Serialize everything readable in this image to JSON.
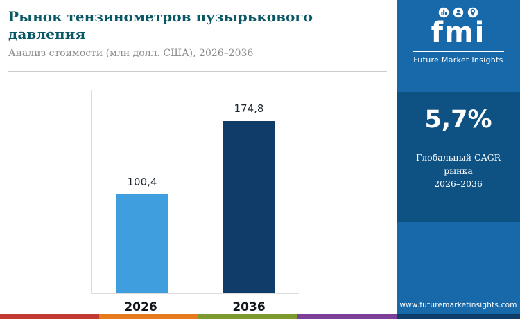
{
  "header": {
    "title": "Рынок тензинометров пузырькового давления",
    "subtitle": "Анализ стоимости (млн долл. США), 2026–2036"
  },
  "chart_data": {
    "type": "bar",
    "categories": [
      "2026",
      "2036"
    ],
    "values": [
      100.4,
      174.8
    ],
    "value_labels": [
      "100,4",
      "174,8"
    ],
    "title": "Рынок тензинометров пузырькового давления",
    "xlabel": "",
    "ylabel": "млн долл. США",
    "ylim": [
      0,
      190
    ],
    "grid": false,
    "legend": false,
    "bar_colors": [
      "#3f9ede",
      "#0f3c69"
    ]
  },
  "sidebar": {
    "logo_text": "fmi",
    "logo_caption": "Future Market Insights",
    "logo_icons": [
      "bar-chart-bubble-icon",
      "person-bubble-icon",
      "location-pin-bubble-icon"
    ],
    "cagr_value": "5,7%",
    "cagr_label_line1": "Глобальный CAGR рынка",
    "cagr_label_line2": "2026–2036",
    "website": "www.futuremarketinsights.com"
  },
  "colors": {
    "sidebar_bg": "#1769aa",
    "cagr_panel_bg": "#0e5183",
    "title_color": "#0a5766",
    "bar_2026": "#3f9ede",
    "bar_2036": "#0f3c69",
    "footer_strip": [
      "#c23b33",
      "#e87a1e",
      "#7d9b30",
      "#7c3f98",
      "#0f3c69"
    ]
  }
}
